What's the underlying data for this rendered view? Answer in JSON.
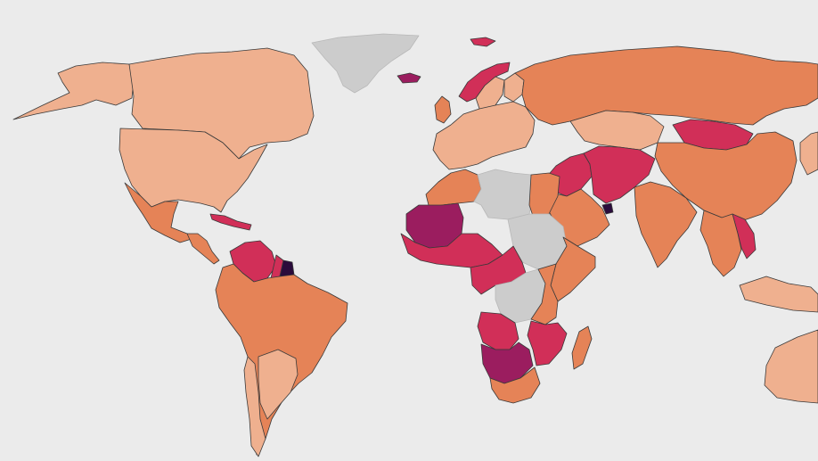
{
  "map": {
    "type": "choropleth",
    "projection": "world",
    "legend_visible": false,
    "colors": {
      "ocean": "#ebebeb",
      "no_data": "#cccccc",
      "level_1": "#efb08f",
      "level_2": "#e58357",
      "level_3": "#d12f58",
      "level_4": "#9b1d5f",
      "level_5": "#2a0b3b",
      "border": "#3a3a3a"
    },
    "regions": [
      {
        "id": "greenland",
        "level": 0
      },
      {
        "id": "alaska",
        "level": 1
      },
      {
        "id": "canada",
        "level": 1
      },
      {
        "id": "united-states",
        "level": 1
      },
      {
        "id": "mexico",
        "level": 2
      },
      {
        "id": "central-america",
        "level": 2
      },
      {
        "id": "caribbean",
        "level": 3
      },
      {
        "id": "venezuela",
        "level": 3
      },
      {
        "id": "suriname",
        "level": 5
      },
      {
        "id": "guyana",
        "level": 3
      },
      {
        "id": "south-america",
        "level": 2
      },
      {
        "id": "chile",
        "level": 1
      },
      {
        "id": "paraguay",
        "level": 1
      },
      {
        "id": "iceland",
        "level": 4
      },
      {
        "id": "svalbard",
        "level": 3
      },
      {
        "id": "norway",
        "level": 3
      },
      {
        "id": "sweden",
        "level": 1
      },
      {
        "id": "finland",
        "level": 1
      },
      {
        "id": "uk",
        "level": 2
      },
      {
        "id": "europe",
        "level": 1
      },
      {
        "id": "russia",
        "level": 2
      },
      {
        "id": "kazakhstan",
        "level": 1
      },
      {
        "id": "mongolia",
        "level": 3
      },
      {
        "id": "china",
        "level": 2
      },
      {
        "id": "middle-east",
        "level": 3
      },
      {
        "id": "iran-afghanistan",
        "level": 3
      },
      {
        "id": "arabia",
        "level": 2
      },
      {
        "id": "uae",
        "level": 5
      },
      {
        "id": "india",
        "level": 2
      },
      {
        "id": "vietnam",
        "level": 3
      },
      {
        "id": "southeast-asia",
        "level": 2
      },
      {
        "id": "north-africa-west",
        "level": 2
      },
      {
        "id": "algeria-libya",
        "level": 0
      },
      {
        "id": "egypt",
        "level": 2
      },
      {
        "id": "mauritania-mali",
        "level": 4
      },
      {
        "id": "west-africa",
        "level": 3
      },
      {
        "id": "sudan-region",
        "level": 0
      },
      {
        "id": "horn-africa",
        "level": 2
      },
      {
        "id": "central-africa",
        "level": 3
      },
      {
        "id": "drc",
        "level": 0
      },
      {
        "id": "east-africa",
        "level": 2
      },
      {
        "id": "angola",
        "level": 3
      },
      {
        "id": "namibia-botswana",
        "level": 4
      },
      {
        "id": "south-africa",
        "level": 2
      },
      {
        "id": "mozambique",
        "level": 3
      },
      {
        "id": "madagascar",
        "level": 2
      },
      {
        "id": "japan",
        "level": 1
      },
      {
        "id": "philippines-indonesia",
        "level": 1
      },
      {
        "id": "australia",
        "level": 1
      }
    ]
  }
}
